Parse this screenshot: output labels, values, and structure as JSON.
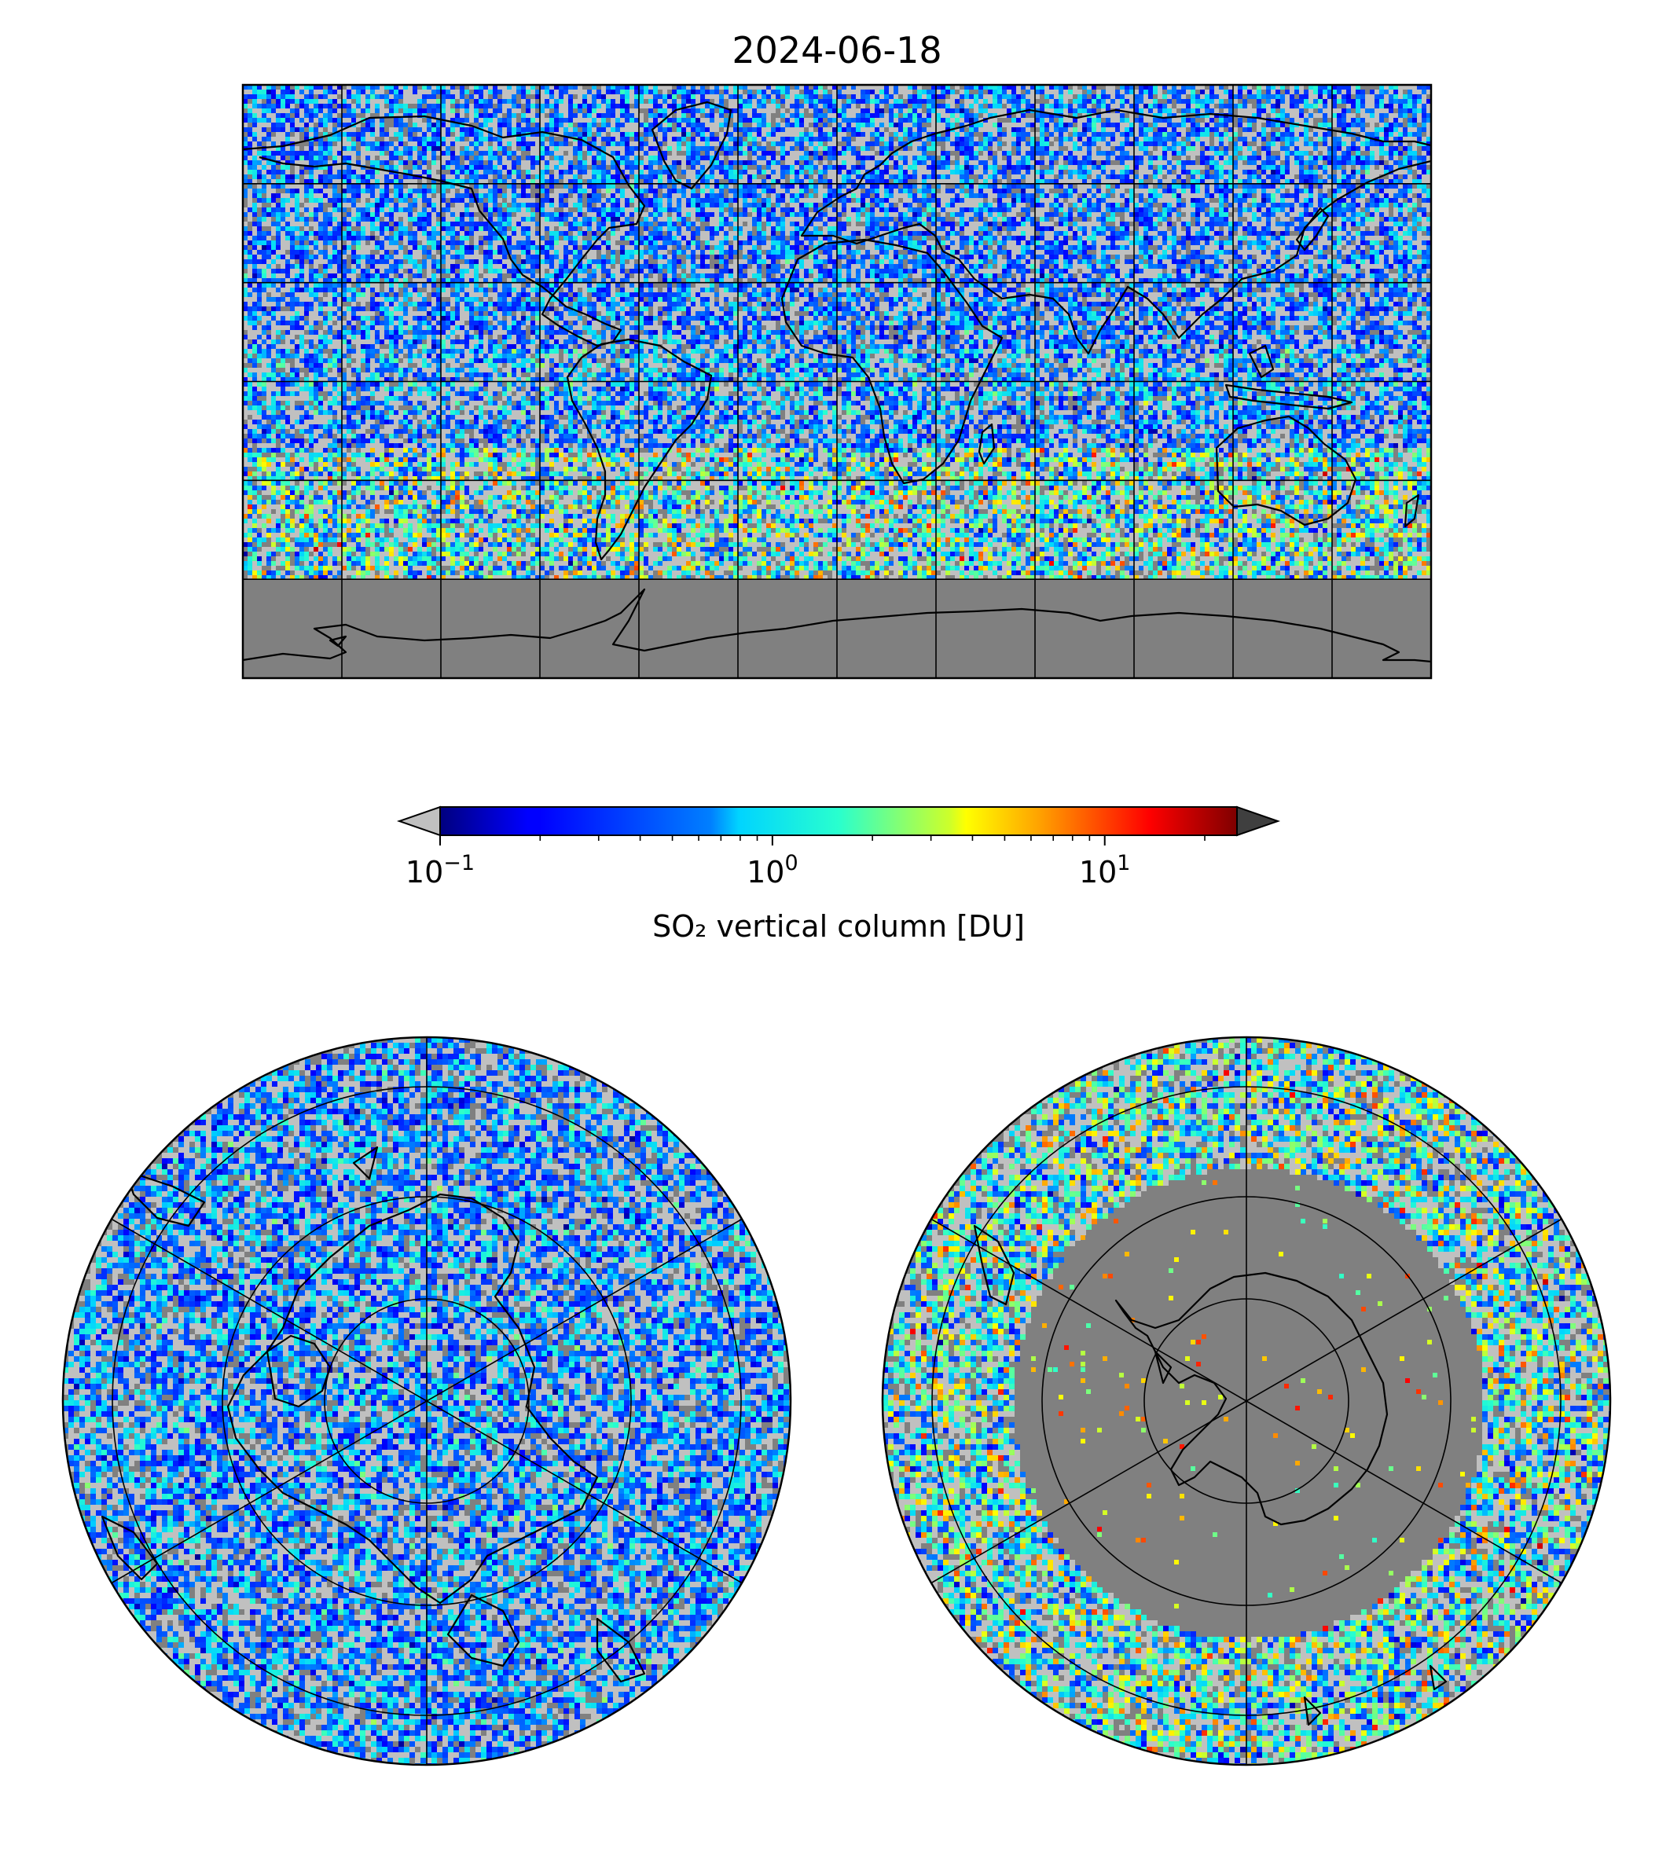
{
  "title": "2024-06-18",
  "colorbar": {
    "label": "SO₂ vertical column [DU]",
    "scale": "log",
    "range": [
      0.1,
      25
    ],
    "colormap": "jet",
    "extend": "both",
    "under_color": "#c0c0c0",
    "over_color": "#3f3f3f",
    "ticks": [
      {
        "value": 0.1,
        "base": "10",
        "exp": "−1"
      },
      {
        "value": 1,
        "base": "10",
        "exp": "0"
      },
      {
        "value": 10,
        "base": "10",
        "exp": "1"
      }
    ]
  },
  "maps": [
    {
      "name": "global-equirectangular-map",
      "projection": "PlateCarree",
      "extent": [
        -180,
        180,
        -90,
        90
      ],
      "gridline_lon_step": 30,
      "gridline_lat_step": 30
    },
    {
      "name": "north-polar-map",
      "projection": "NorthPolarStereo",
      "gridline_lat": [
        30,
        60
      ],
      "gridline_lon_step": 60
    },
    {
      "name": "south-polar-map",
      "projection": "SouthPolarStereo",
      "gridline_lat": [
        -30,
        -60
      ],
      "gridline_lon_step": 60
    }
  ],
  "colors": {
    "no_data": "#808080",
    "low_value": "#c0c0c0",
    "coastline": "#000000"
  }
}
